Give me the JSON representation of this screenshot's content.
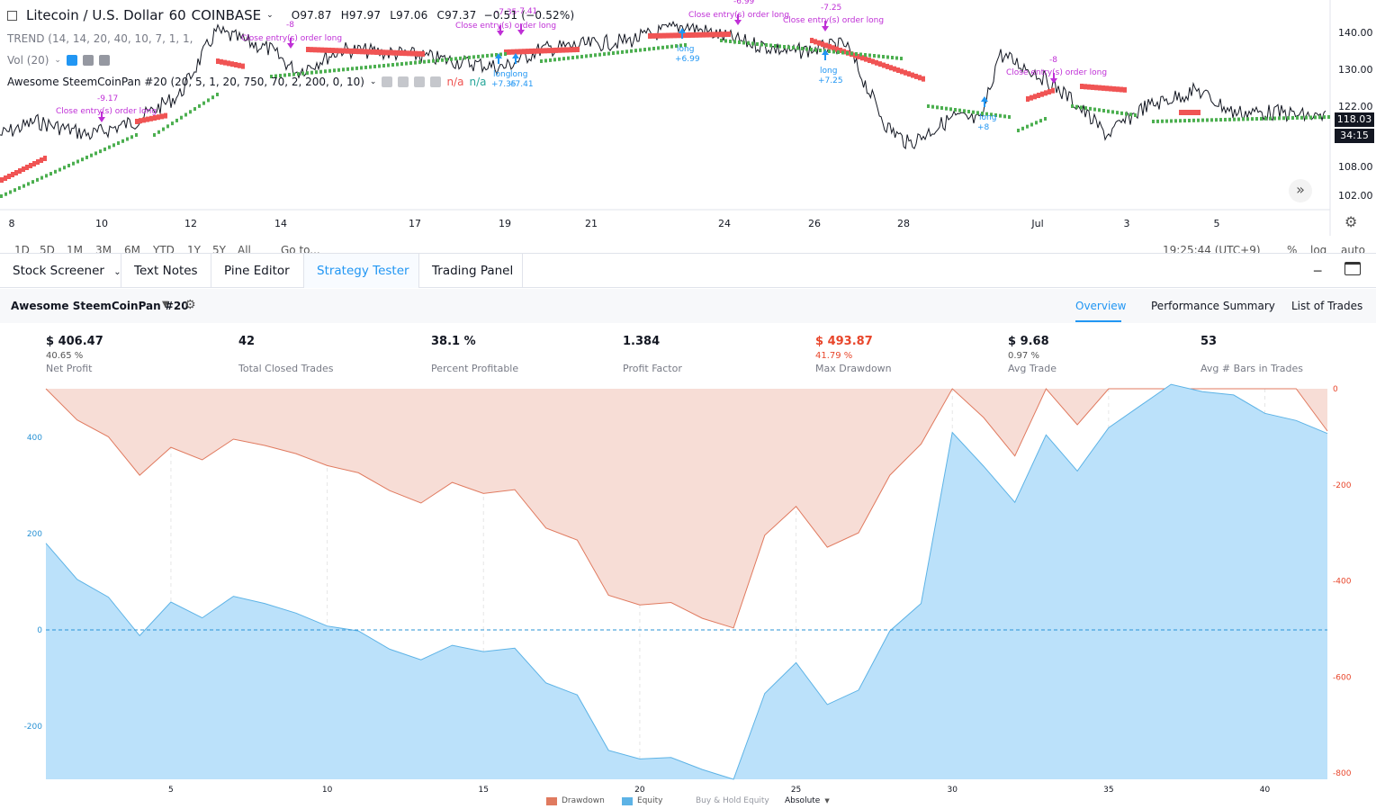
{
  "symbol": {
    "title": "Litecoin / U.S. Dollar",
    "interval": "60",
    "exchange": "COINBASE",
    "open": "O97.87",
    "high": "H97.97",
    "low": "L97.06",
    "close": "C97.37",
    "change": "−0.51 (−0.52%)"
  },
  "indicators": {
    "trend": "TREND (14, 14, 20, 40, 10, 7, 1, 1,",
    "vol": "Vol (20)",
    "strategy": "Awesome SteemCoinPan #20 (20, 5, 1, 20, 750, 70, 2, 200, 0, 10)",
    "na1": "n/a",
    "na2": "n/a"
  },
  "price_axis": {
    "ticks": [
      "140.00",
      "130.00",
      "122.00",
      "108.00",
      "102.00"
    ],
    "last_price": "118.03",
    "countdown": "34:15",
    "colors": {
      "last": "#131722",
      "countdown": "#131722"
    }
  },
  "time_axis": {
    "ticks": [
      "8",
      "10",
      "12",
      "14",
      "17",
      "19",
      "21",
      "24",
      "26",
      "28",
      "Jul",
      "3",
      "5"
    ]
  },
  "trade_labels": {
    "close_entry": "Close entry(s) order long",
    "long": "long",
    "values": [
      "-9.17",
      "-8",
      "-7.35",
      "-7.41",
      "-6.99",
      "-7.25",
      "-8",
      "+7.35",
      "+7.41",
      "+6.99",
      "+7.25",
      "+8"
    ]
  },
  "range_row": {
    "items": [
      "1D",
      "5D",
      "1M",
      "3M",
      "6M",
      "YTD",
      "1Y",
      "5Y",
      "All",
      "Go to..."
    ],
    "clock": "19:25:44 (UTC+9)",
    "right": [
      "%",
      "log",
      "auto"
    ]
  },
  "bottom_tabs": [
    {
      "label": "Stock Screener",
      "active": false
    },
    {
      "label": "Text Notes",
      "active": false
    },
    {
      "label": "Pine Editor",
      "active": false
    },
    {
      "label": "Strategy Tester",
      "active": true
    },
    {
      "label": "Trading Panel",
      "active": false
    }
  ],
  "strategy_header": {
    "name": "Awesome SteemCoinPan #20",
    "tabs": [
      "Overview",
      "Performance Summary",
      "List of Trades"
    ]
  },
  "stats": [
    {
      "value": "$ 406.47",
      "sub": "40.65 %",
      "label": "Net Profit",
      "negative": false
    },
    {
      "value": "42",
      "sub": "",
      "label": "Total Closed Trades",
      "negative": false
    },
    {
      "value": "38.1 %",
      "sub": "",
      "label": "Percent Profitable",
      "negative": false
    },
    {
      "value": "1.384",
      "sub": "",
      "label": "Profit Factor",
      "negative": false
    },
    {
      "value": "$ 493.87",
      "sub": "41.79 %",
      "label": "Max Drawdown",
      "negative": true
    },
    {
      "value": "$ 9.68",
      "sub": "0.97 %",
      "label": "Avg Trade",
      "negative": false
    },
    {
      "value": "53",
      "sub": "",
      "label": "Avg # Bars in Trades",
      "negative": false
    }
  ],
  "equity_chart": {
    "left_ticks": [
      "400",
      "200",
      "0",
      "-200"
    ],
    "right_ticks": [
      "0",
      "-200",
      "-400",
      "-600",
      "-800"
    ],
    "x_ticks": [
      "5",
      "10",
      "15",
      "20",
      "25",
      "30",
      "35",
      "40"
    ],
    "colors": {
      "equity": "#bbe1fa",
      "equity_line": "#5db3e6",
      "drawdown": "#f7ddd6",
      "drawdown_line": "#e07a5f"
    },
    "equity": [
      180,
      105,
      68,
      -12,
      58,
      25,
      70,
      55,
      35,
      8,
      -2,
      -40,
      -62,
      -32,
      -45,
      -38,
      -110,
      -135,
      -250,
      -268,
      -265,
      -290,
      -315,
      -132,
      -68,
      -155,
      -125,
      -2,
      55,
      410,
      340,
      265,
      405,
      330,
      420,
      465,
      510,
      495,
      488,
      450,
      435,
      408
    ],
    "drawdown": [
      0,
      -65,
      -100,
      -180,
      -122,
      -148,
      -105,
      -118,
      -135,
      -160,
      -175,
      -212,
      -238,
      -195,
      -218,
      -210,
      -290,
      -315,
      -430,
      -450,
      -445,
      -478,
      -498,
      -305,
      -245,
      -330,
      -300,
      -180,
      -115,
      0,
      -60,
      -140,
      0,
      -75,
      0,
      0,
      0,
      0,
      0,
      0,
      0,
      -88
    ]
  },
  "equity_legend": {
    "items": [
      "Drawdown",
      "Equity",
      "Buy & Hold Equity"
    ],
    "mode": "Absolute"
  }
}
